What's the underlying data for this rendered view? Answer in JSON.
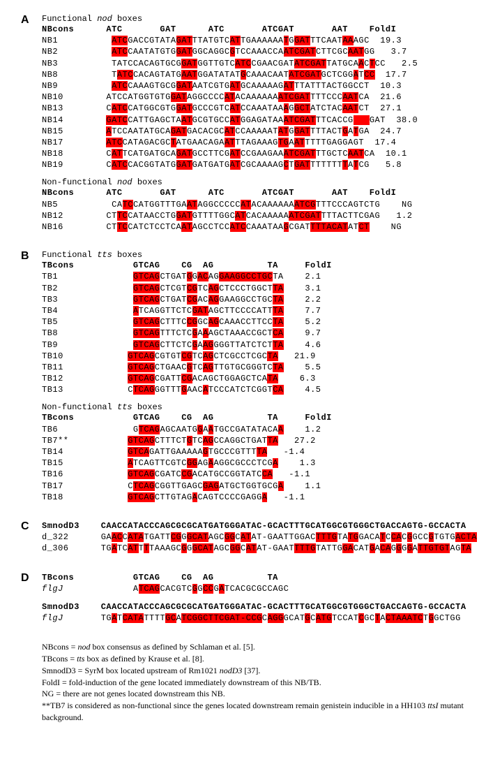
{
  "panelA": {
    "label": "A",
    "func_title_pre": "Functional ",
    "func_title_it": "nod",
    "func_title_post": " boxes",
    "header": "NBcons      ATC       GAT      ATC       ATCGAT       AAT    FoldI",
    "func_rows": [
      {
        "name": "NB1",
        "pre": "         ",
        "seq": "_ATC_GACCGTATA_GAT_TTATGTC_AT_TGAAAAAA_T_G_GAT_TTCAAT_AA_AGC",
        "fold": "  19.3"
      },
      {
        "name": "NB2",
        "pre": "         ",
        "seq": "_ATC_CAATATGTG_GAT_GGCAGGC_G_TCCAAACCA_ATCGAT_CTTCGC_AAT_GG",
        "fold": "   3.7"
      },
      {
        "name": "NB3",
        "pre": "         ",
        "seq": "TATCCACAGTGCG_GAT_GGTTGTC_ATC_CGAACGAT_ATCGAT_TATGCA_A_C_T_CC",
        "fold": "   2.5"
      },
      {
        "name": "NB8",
        "pre": "         ",
        "seq": "T_ATC_CACAGTATG_AAT_GGATATAT_G_CAAACAAT_ATCGAT_GCTCGG_A_T_CC",
        "fold": "  17.7"
      },
      {
        "name": "NB9",
        "pre": "         ",
        "seq": "_ATC_CAAAGTGCG_GAT_AATCGTG_AT_GCAAAAAG_AT_TTATTTACTGGCCT",
        "fold": "  10.3"
      },
      {
        "name": "NB10",
        "pre": "        ",
        "seq": "ATCCATGGTGTG_GAT_AGGCCCC_AT_ACAAAAAA_ATCGAT_TTTCCC_AAT_CA",
        "fold": "  21.6"
      },
      {
        "name": "NB13",
        "pre": "        ",
        "seq": "C_ATC_CATGGCGTG_GAT_GCCCGTC_AT_CCAAATAA_A_G_GCT_ATCTAC_AAT_CT",
        "fold": "  27.1"
      },
      {
        "name": "NB14",
        "pre": "        ",
        "seq": "_GATC_CATTGAGCTA_AT_GCGTGCC_AT_GGAGATAA_ATCGAT_TTCACCG_   _GAT",
        "fold": "  38.0"
      },
      {
        "name": "NB15",
        "pre": "        ",
        "seq": "_A_TCCAATATGCA_GAT_GACACGC_AT_CCAAAAAT_AT_G_GAT_TTTACT_G_A_T_GA",
        "fold": "  24.7"
      },
      {
        "name": "NB17",
        "pre": "        ",
        "seq": "_ATC_CATAGACGC_T_ATGAACAGA_AT_TTAGAAAG_TG_A_AT_TTTTGAGGAGT",
        "fold": "  17.4"
      },
      {
        "name": "NB18",
        "pre": "        ",
        "seq": "C_AT_TCATGATGCA_GAT_GCCTTCG_AT_CCGAAGAA_ATCGAT_TTGCTC_AAT_CA",
        "fold": "  10.1"
      },
      {
        "name": "NB19",
        "pre": "        ",
        "seq": "C_ATC_CACGGTATG_GAT_GATGATG_AT_CGCAAAAG_C_T_GAT_TTTTTT_T_A_T_CG",
        "fold": "   5.8"
      }
    ],
    "nonfunc_title_pre": "Non-functional ",
    "nonfunc_title_it": "nod",
    "nonfunc_title_post": " boxes",
    "nonfunc_rows": [
      {
        "name": "NB5",
        "pre": "         ",
        "seq": "CA_TC_CATGGTTTGA_AT_AGGCCCCC_AT_ACAAAAAA_ATCG_TTTCCCAGTCTG",
        "fold": "    NG"
      },
      {
        "name": "NB12",
        "pre": "        ",
        "seq": "CT_TC_CATAACCTG_GAT_GTTTTGGC_AT_CACAAAAA_ATCGAT_TTTACTTCGAG",
        "fold": "   1.2"
      },
      {
        "name": "NB16",
        "pre": "        ",
        "seq": "CT_TC_CATCTCCTCA_AT_AGCCTCC_ATC_CAAATAA_G_CGAT_TTTACAT_AT_CT",
        "fold": "    NG"
      }
    ]
  },
  "panelB": {
    "label": "B",
    "func_title_pre": "Functional ",
    "func_title_it": "tts",
    "func_title_post": " boxes",
    "header": "TBcons           GTCAG    CG  AG          TA     FoldI",
    "func_rows": [
      {
        "name": "TB1",
        "pre": "             ",
        "seq": "_GTCAG_CTGAT_G_G_AC_AG_GAAGGCCTGC_TA_",
        "fold": "    2.1"
      },
      {
        "name": "TB2",
        "pre": "             ",
        "seq": "_GTCAG_CTCGT_CG_TC_AG_CTCCCTGGCT_TA_",
        "fold": "    3.1"
      },
      {
        "name": "TB3",
        "pre": "             ",
        "seq": "_GTCAG_CTGAT_CG_AC_AG_GAAGGCCTGC_TA_",
        "fold": "    2.2"
      },
      {
        "name": "TB4",
        "pre": "             ",
        "seq": "_A_TCAGGTTCTC_GAT_AGCTTCCCCATT_TA_",
        "fold": "    7.7"
      },
      {
        "name": "TB5",
        "pre": "             ",
        "seq": "_GTCAG_CTTTC_CG_GC_AG_CAAACCTTCC_TA_",
        "fold": "    5.2"
      },
      {
        "name": "TB8",
        "pre": "             ",
        "seq": "_GTCAG_TTTCTC_G_A_A_AGCTAAACCGCT_CA_",
        "fold": "    9.7"
      },
      {
        "name": "TB9",
        "pre": "             ",
        "seq": "_GTCAG_CTTCTC_G_A_AG_GGGTTATCTCT_TA_",
        "fold": "    4.6"
      },
      {
        "name": "TB10",
        "pre": "            ",
        "seq": "_GTCAG_CGTGT_CG_TC_AG_CTCGCCTCGC_TA_",
        "fold": "   21.9"
      },
      {
        "name": "TB11",
        "pre": "            ",
        "seq": "_GTCAG_CTGAAC_G_TC_AG_TTGTGCGGGTC_TA_",
        "fold": "    5.5"
      },
      {
        "name": "TB12",
        "pre": "            ",
        "seq": "_GTCAG_CGATT_CG_ACAGCTGGAGCTCA_TA_",
        "fold": "    6.3"
      },
      {
        "name": "TB13",
        "pre": "            ",
        "seq": "C_TCAG_GGTTT_G_AAC_A_TCCCATCTCGGT_CA_",
        "fold": "    4.5"
      }
    ],
    "nonfunc_title_pre": "Non-functional ",
    "nonfunc_title_it": "tts",
    "nonfunc_title_post": " boxes",
    "nonfunc_rows": [
      {
        "name": "TB6",
        "pre": "             ",
        "seq": "G_TCAG_AGCAATG_G_A_A_TGCCGATATACA_A_",
        "fold": "    1.2"
      },
      {
        "name": "TB7**",
        "pre": "           ",
        "seq": "_GTCAG_CTTTCT_G_TC_AG_CCAGGCTGAT_TA_",
        "fold": "   27.2"
      },
      {
        "name": "TB14",
        "pre": "            ",
        "seq": "_GTCA_GATTGAAAAA_G_TGCCCGTTT_TA_",
        "fold": "   -1.4"
      },
      {
        "name": "TB15",
        "pre": "            ",
        "seq": "_A_TCAGTTCGTC_GG_AG_A_AGGCGCCCTCG_A_",
        "fold": "    1.3"
      },
      {
        "name": "TB16",
        "pre": "            ",
        "seq": "_GTCAG_CGATC_CG_ACATGCCGGTATC_CA_",
        "fold": "   -1.1"
      },
      {
        "name": "TB17",
        "pre": "            ",
        "seq": "C_TCAG_CGGTTGAGC_GAG_ATGCTGGTGCG_A_",
        "fold": "    1.1"
      },
      {
        "name": "TB18",
        "pre": "            ",
        "seq": "_GTCAG_CTTGTAG_A_CAGTCCCCGAGG_A_",
        "fold": "   -1.1"
      }
    ]
  },
  "panelC": {
    "label": "C",
    "header_name": "SmnodD3",
    "header_seq": "CAACCATACCCAGCGCGCATGATGGGATAC-GCACTTTGCATGGCGTGGGCTGACCAGTG-GCCACTA",
    "header_bold_ranges": [
      [
        2,
        5
      ],
      [
        5,
        9
      ],
      [
        10,
        11
      ],
      [
        15,
        16
      ],
      [
        16,
        22
      ],
      [
        22,
        28
      ],
      [
        33,
        42
      ],
      [
        42,
        43
      ],
      [
        45,
        49
      ],
      [
        50,
        54
      ],
      [
        62,
        69
      ]
    ],
    "rows": [
      {
        "name": "d_322",
        "pre": "      ",
        "seq": "GA_AC_C_ATA_TGATT_CG_G_GCAT_AGC_GG_C_AT_AT-GAATTGGAC_TTTG_TA_TG_GACA_T_C_CA_C_G_GCC_G_TGTG_ACTA_"
      },
      {
        "name": "d_306",
        "pre": "      ",
        "seq": "TG_A_TC_AT_T_T_TAAAGC_G_G_GCAT_AGC_GG_C_AT_AT-GAAT_TTTG_TATTG_GA_CAT_G_A_CA_G_G_G_G_A_TTGTGT_AG_TA"
      }
    ]
  },
  "panelD": {
    "label": "D",
    "header1_name": "TBcons",
    "header1_seq": "GTCAG    CG  AG          TA",
    "flgJ1_pre": "            ",
    "flgJ1_seq": "A_TCAG_CACGTC_G_G_CC_G_A_TCACGCGCCAGC",
    "header2_name": "SmnodD3",
    "header2_seq": "CAACCATACCCAGCGCGCATGATGGGATAC-GCACTTTGCATGGCGTGGGCTGACCAGTG-GCCACTA",
    "flgJ2_pre": "       ",
    "flgJ2_seq": "TG_A_T_CATA_TTTT_GC_A_TCGGCTTCGAT-CCG_C_AGG_GCAT_G_C_ATG_TCCAT_C_GC_T_A_CTAAATC_T_G_GCTGG"
  },
  "notes": {
    "n1_pre": "NBcons = ",
    "n1_it": "nod",
    "n1_post": " box consensus as defined by Schlaman et al. [5].",
    "n2_pre": "TBcons = ",
    "n2_it": "tts",
    "n2_post": " box as defined by Krause et al. [8].",
    "n3_pre": "SmnodD3 = SyrM box located upstream of Rm1021 ",
    "n3_it": "nodD3",
    "n3_post": " [37].",
    "n4": "FoldI = fold-induction of the gene located immediately downstream of this NB/TB.",
    "n5": "NG = there are not genes located downstream this NB.",
    "n6_pre": "**TB7 is considered as non-functional since the genes located downstream remain genistein inducible in a HH103",
    "n6_it": " ttsI",
    "n6_post": " mutant background."
  }
}
